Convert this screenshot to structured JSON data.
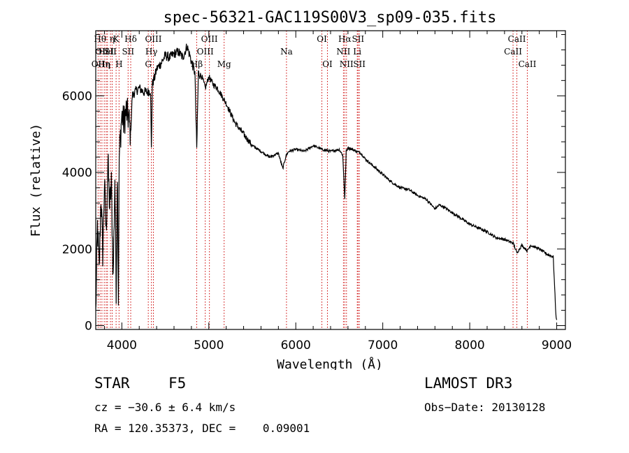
{
  "chart_data": {
    "type": "line",
    "title": "spec-56321-GAC119S00V3_sp09-035.fits",
    "xlabel": "Wavelength (Å)",
    "ylabel": "Flux (relative)",
    "xlim": [
      3700,
      9100
    ],
    "ylim": [
      -100,
      7700
    ],
    "xticks": [
      {
        "value": 4000,
        "label": "4000"
      },
      {
        "value": 5000,
        "label": "5000"
      },
      {
        "value": 6000,
        "label": "6000"
      },
      {
        "value": 7000,
        "label": "7000"
      },
      {
        "value": 8000,
        "label": "8000"
      },
      {
        "value": 9000,
        "label": "9000"
      }
    ],
    "yticks": [
      {
        "value": 0,
        "label": "0"
      },
      {
        "value": 2000,
        "label": "2000"
      },
      {
        "value": 4000,
        "label": "4000"
      },
      {
        "value": 6000,
        "label": "6000"
      }
    ],
    "series": [
      {
        "name": "spectrum",
        "color": "#000000",
        "x": [
          3700,
          3720,
          3740,
          3760,
          3780,
          3800,
          3820,
          3840,
          3860,
          3880,
          3900,
          3920,
          3935,
          3950,
          3960,
          3970,
          3980,
          4000,
          4020,
          4050,
          4080,
          4100,
          4120,
          4150,
          4200,
          4250,
          4300,
          4330,
          4340,
          4350,
          4380,
          4400,
          4450,
          4500,
          4550,
          4600,
          4650,
          4700,
          4750,
          4800,
          4840,
          4861,
          4880,
          4920,
          4960,
          5000,
          5050,
          5100,
          5150,
          5200,
          5250,
          5300,
          5400,
          5500,
          5600,
          5700,
          5800,
          5850,
          5890,
          5920,
          6000,
          6100,
          6200,
          6300,
          6400,
          6500,
          6540,
          6563,
          6580,
          6600,
          6650,
          6700,
          6750,
          6800,
          6850,
          6900,
          6950,
          7000,
          7100,
          7200,
          7300,
          7400,
          7500,
          7600,
          7650,
          7700,
          7800,
          7900,
          8000,
          8100,
          8200,
          8300,
          8400,
          8500,
          8542,
          8600,
          8662,
          8700,
          8800,
          8900,
          8960,
          8980,
          8990,
          9000
        ],
        "y": [
          300,
          2600,
          1400,
          3400,
          1900,
          3700,
          2400,
          4300,
          3100,
          3700,
          1200,
          3900,
          1000,
          4200,
          600,
          4400,
          4800,
          5500,
          5300,
          5600,
          5400,
          5000,
          6000,
          6100,
          6200,
          6100,
          6100,
          6150,
          4600,
          6300,
          6500,
          6700,
          6850,
          7050,
          7000,
          7100,
          7150,
          7000,
          7300,
          6900,
          6600,
          4600,
          6600,
          6500,
          6200,
          6500,
          6300,
          6200,
          6000,
          5800,
          5550,
          5300,
          5000,
          4700,
          4550,
          4400,
          4500,
          4100,
          4450,
          4550,
          4600,
          4550,
          4700,
          4600,
          4550,
          4600,
          4450,
          3300,
          4550,
          4650,
          4600,
          4550,
          4500,
          4350,
          4250,
          4150,
          4050,
          3950,
          3750,
          3600,
          3550,
          3400,
          3300,
          3050,
          3150,
          3100,
          2950,
          2800,
          2650,
          2550,
          2450,
          2300,
          2250,
          2150,
          1900,
          2100,
          1950,
          2100,
          2000,
          1850,
          1800,
          800,
          300,
          150
        ]
      }
    ],
    "lines": [
      {
        "wavelength": 3727,
        "label": "OII",
        "row": 2
      },
      {
        "wavelength": 3750,
        "label": "Hθ",
        "row": 0
      },
      {
        "wavelength": 3771,
        "label": "OII",
        "row": 1
      },
      {
        "wavelength": 3798,
        "label": "Hη",
        "row": 2
      },
      {
        "wavelength": 3820,
        "label": "HeI",
        "row": 1
      },
      {
        "wavelength": 3835,
        "label": "η",
        "row": 2
      },
      {
        "wavelength": 3869,
        "label": "SII",
        "row": 1
      },
      {
        "wavelength": 3889,
        "label": "η",
        "row": 0
      },
      {
        "wavelength": 3934,
        "label": "K",
        "row": 0
      },
      {
        "wavelength": 3968,
        "label": "H",
        "row": 2
      },
      {
        "wavelength": 4072,
        "label": "SII",
        "row": 1
      },
      {
        "wavelength": 4102,
        "label": "Hδ",
        "row": 0
      },
      {
        "wavelength": 4304,
        "label": "G",
        "row": 2
      },
      {
        "wavelength": 4340,
        "label": "Hγ",
        "row": 1
      },
      {
        "wavelength": 4363,
        "label": "OIII",
        "row": 0
      },
      {
        "wavelength": 4861,
        "label": "Hβ",
        "row": 2
      },
      {
        "wavelength": 4959,
        "label": "OIII",
        "row": 1
      },
      {
        "wavelength": 5007,
        "label": "OIII",
        "row": 0
      },
      {
        "wavelength": 5176,
        "label": "Mg",
        "row": 2
      },
      {
        "wavelength": 5893,
        "label": "Na",
        "row": 1
      },
      {
        "wavelength": 6300,
        "label": "OI",
        "row": 0
      },
      {
        "wavelength": 6364,
        "label": "OI",
        "row": 2
      },
      {
        "wavelength": 6548,
        "label": "NII",
        "row": 1
      },
      {
        "wavelength": 6563,
        "label": "Hα",
        "row": 0
      },
      {
        "wavelength": 6583,
        "label": "NII",
        "row": 2
      },
      {
        "wavelength": 6707,
        "label": "Li",
        "row": 1
      },
      {
        "wavelength": 6716,
        "label": "SII",
        "row": 0
      },
      {
        "wavelength": 6731,
        "label": "SII",
        "row": 2
      },
      {
        "wavelength": 8498,
        "label": "CaII",
        "row": 1
      },
      {
        "wavelength": 8542,
        "label": "CaII",
        "row": 0
      },
      {
        "wavelength": 8662,
        "label": "CaII",
        "row": 2
      }
    ]
  },
  "info": {
    "object_class": "STAR",
    "subclass": "F5",
    "survey": "LAMOST DR3",
    "cz": "cz = −30.6 ± 6.4 km/s",
    "obs_date": "Obs−Date: 20130128",
    "radec": "RA = 120.35373, DEC =    0.09001"
  },
  "colors": {
    "spectrum": "#000000",
    "line_marker": "#cc0000",
    "background": "#ffffff"
  }
}
